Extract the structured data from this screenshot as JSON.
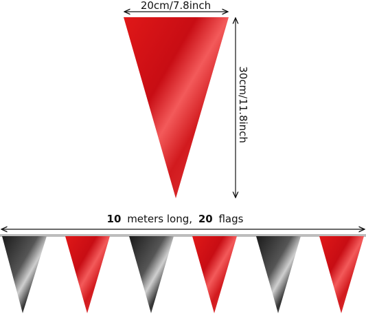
{
  "top_flag": {
    "width_label": "20cm/7.8inch",
    "height_label": "30cm/11.8inch"
  },
  "bunting": {
    "length_label": {
      "number_1": "10",
      "text_1": "meters long,",
      "number_2": "20",
      "text_2": "flags"
    }
  }
}
